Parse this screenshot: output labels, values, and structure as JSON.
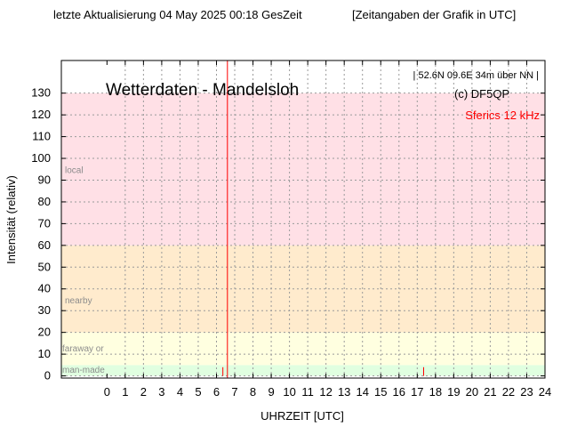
{
  "header": {
    "update_text": "letzte Aktualisierung 04 May 2025 00:18 GesZeit",
    "utc_note": "[Zeitangaben der Grafik in UTC]"
  },
  "chart_data": {
    "type": "bar",
    "title": "Wetterdaten - Mandelsloh",
    "location": "| 52.6N 09.6E  34m über NN |",
    "copyright": "(c) DF5QP",
    "series_label": "Sferics   12 kHz",
    "xlabel": "UHRZEIT [UTC]",
    "ylabel": "Intensität (relativ)",
    "xlim": [
      -2.5,
      24
    ],
    "ylim": [
      -1,
      145
    ],
    "x_ticks": [
      0,
      1,
      2,
      3,
      4,
      5,
      6,
      7,
      8,
      9,
      10,
      11,
      12,
      13,
      14,
      15,
      16,
      17,
      18,
      19,
      20,
      21,
      22,
      23,
      24
    ],
    "y_ticks": [
      0,
      10,
      20,
      30,
      40,
      50,
      60,
      70,
      80,
      90,
      100,
      110,
      120,
      130
    ],
    "grid": true,
    "bands": [
      {
        "label": "man-made",
        "from": 0,
        "to": 5,
        "color": "#e0ffe0"
      },
      {
        "label": "faraway or",
        "from": 5,
        "to": 20,
        "color": "#ffffe0"
      },
      {
        "label": "nearby",
        "from": 20,
        "to": 60,
        "color": "#ffebcd"
      },
      {
        "label": "local",
        "from": 60,
        "to": 130,
        "color": "#ffe0e6"
      }
    ],
    "now_marker": {
      "x": 6.6,
      "color": "#ff0000"
    },
    "series": [
      {
        "color": "#ff0000",
        "points": [
          {
            "x": 6.35,
            "y": 4
          },
          {
            "x": 17.35,
            "y": 4
          }
        ]
      }
    ]
  }
}
